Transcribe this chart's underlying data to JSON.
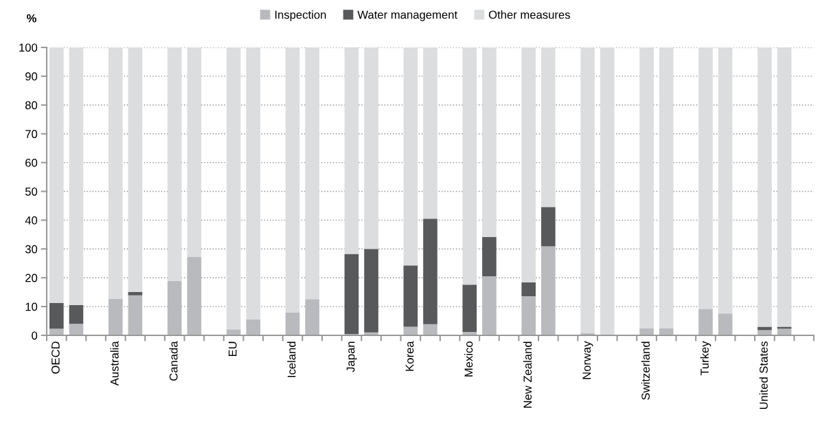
{
  "chart_data": {
    "type": "bar",
    "stacked": true,
    "ylabel": "%",
    "categories": [
      "OECD",
      null,
      null,
      "Australia",
      null,
      null,
      "Canada",
      null,
      null,
      "EU",
      null,
      null,
      "Iceland",
      null,
      null,
      "Japan",
      null,
      null,
      "Korea",
      null,
      null,
      "Mexico",
      null,
      null,
      "New Zealand",
      null,
      null,
      "Norway",
      null,
      null,
      "Switzerland",
      null,
      null,
      "Turkey",
      null,
      null,
      "United States",
      null,
      null
    ],
    "series": [
      {
        "name": "Inspection",
        "color": "#b9babd",
        "values": [
          2.3,
          4.0,
          null,
          12.7,
          13.9,
          null,
          18.9,
          27.2,
          null,
          2.1,
          5.5,
          null,
          8.0,
          12.6,
          null,
          0.5,
          1.0,
          null,
          3.0,
          3.9,
          null,
          1.2,
          20.5,
          null,
          13.6,
          30.9,
          null,
          0.8,
          0,
          null,
          2.5,
          2.5,
          null,
          9.2,
          7.6,
          null,
          1.8,
          2.3,
          null
        ]
      },
      {
        "name": "Water management",
        "color": "#58595b",
        "values": [
          9.0,
          6.5,
          null,
          0,
          1.2,
          null,
          0,
          0,
          null,
          0,
          0,
          null,
          0,
          0,
          null,
          27.8,
          29.0,
          null,
          21.3,
          36.6,
          null,
          16.4,
          13.7,
          null,
          4.8,
          13.7,
          null,
          0,
          0,
          null,
          0,
          0,
          null,
          0,
          0,
          null,
          1.2,
          0.7,
          null
        ]
      },
      {
        "name": "Other measures",
        "color": "#dcdddf",
        "values": [
          88.7,
          89.5,
          null,
          87.3,
          84.9,
          null,
          81.1,
          72.8,
          null,
          97.9,
          94.5,
          null,
          92.0,
          87.4,
          null,
          71.7,
          70.0,
          null,
          75.7,
          59.5,
          null,
          82.4,
          65.8,
          null,
          81.6,
          55.4,
          null,
          99.2,
          100,
          null,
          97.5,
          97.5,
          null,
          90.8,
          92.4,
          null,
          97.0,
          97.0,
          null
        ]
      }
    ],
    "ylim": [
      0,
      100
    ],
    "yticks": [
      0,
      10,
      20,
      30,
      40,
      50,
      60,
      70,
      80,
      90,
      100
    ],
    "grid": "y",
    "legend": "top"
  }
}
